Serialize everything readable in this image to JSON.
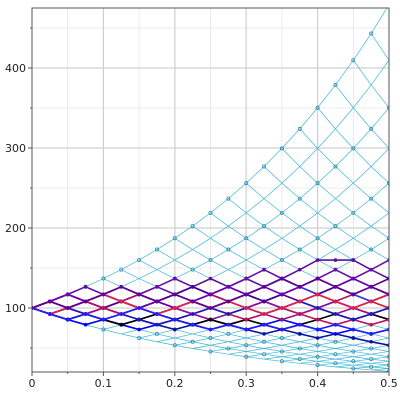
{
  "chart_data": {
    "type": "line",
    "title": "",
    "xlabel": "",
    "ylabel": "",
    "xlim": [
      0,
      0.5
    ],
    "ylim": [
      20,
      475
    ],
    "grid": true,
    "legend": "none",
    "x_ticks": [
      {
        "value": 0,
        "label": "0"
      },
      {
        "value": 0.1,
        "label": "0.1"
      },
      {
        "value": 0.2,
        "label": "0.2"
      },
      {
        "value": 0.3,
        "label": "0.3"
      },
      {
        "value": 0.4,
        "label": "0.4"
      },
      {
        "value": 0.5,
        "label": "0.5"
      }
    ],
    "y_ticks": [
      {
        "value": 100,
        "label": "100"
      },
      {
        "value": 200,
        "label": "200"
      },
      {
        "value": 300,
        "label": "300"
      },
      {
        "value": 400,
        "label": "400"
      }
    ],
    "lattice": {
      "s0": 100,
      "steps": 20,
      "t_max": 0.5,
      "up_factor": 1.0815,
      "color": "#3fb6d6",
      "node_color": "#2e8fb0"
    },
    "paths_x": [
      0,
      0.025,
      0.05,
      0.075,
      0.1,
      0.125,
      0.15,
      0.175,
      0.2,
      0.225,
      0.25,
      0.275,
      0.3,
      0.325,
      0.35,
      0.375,
      0.4,
      0.425,
      0.45,
      0.475,
      0.5
    ],
    "series": [
      {
        "color": "#5a0fa0",
        "values": [
          100,
          108.2,
          117.0,
          126.5,
          117.0,
          126.5,
          117.0,
          126.5,
          117.0,
          126.5,
          136.8,
          126.5,
          136.8,
          126.5,
          136.8,
          147.9,
          159.9,
          159.9,
          159.9,
          147.9,
          136.8
        ]
      },
      {
        "color": "#6a10a8",
        "values": [
          100,
          108.2,
          100,
          108.2,
          117.0,
          108.2,
          117.0,
          126.5,
          136.8,
          126.5,
          117.0,
          126.5,
          136.8,
          147.9,
          136.8,
          126.5,
          136.8,
          147.9,
          136.8,
          147.9,
          159.9
        ]
      },
      {
        "color": "#2d1fd1",
        "values": [
          100,
          108.2,
          117.0,
          108.2,
          117.0,
          126.5,
          117.0,
          108.2,
          117.0,
          126.5,
          117.0,
          108.2,
          117.0,
          126.5,
          136.8,
          126.5,
          117.0,
          126.5,
          136.8,
          126.5,
          117.0
        ]
      },
      {
        "color": "#b01060",
        "values": [
          100,
          92.5,
          100,
          108.2,
          100,
          108.2,
          117.0,
          108.2,
          100,
          108.2,
          117.0,
          108.2,
          100,
          108.2,
          117.0,
          126.5,
          117.0,
          108.2,
          117.0,
          108.2,
          117.0
        ]
      },
      {
        "color": "#d01040",
        "values": [
          100,
          92.5,
          100,
          92.5,
          100,
          108.2,
          100,
          108.2,
          100,
          92.5,
          100,
          108.2,
          117.0,
          108.2,
          100,
          108.2,
          100,
          108.2,
          100,
          108.2,
          100
        ]
      },
      {
        "color": "#1010a0",
        "values": [
          100,
          92.5,
          85.5,
          92.5,
          85.5,
          79.1,
          85.5,
          79.1,
          73.1,
          79.1,
          85.5,
          79.1,
          73.1,
          67.6,
          73.1,
          67.6,
          62.5,
          67.6,
          62.5,
          57.8,
          53.5
        ]
      },
      {
        "color": "#0000ff",
        "values": [
          100,
          92.5,
          85.5,
          79.1,
          85.5,
          79.1,
          73.1,
          79.1,
          85.5,
          79.1,
          73.1,
          79.1,
          73.1,
          79.1,
          85.5,
          79.1,
          73.1,
          67.6,
          73.1,
          67.6,
          73.1
        ]
      },
      {
        "color": "#8010a0",
        "values": [
          100,
          108.2,
          100,
          92.5,
          100,
          92.5,
          85.5,
          92.5,
          100,
          92.5,
          85.5,
          92.5,
          100,
          108.2,
          100,
          92.5,
          100,
          108.2,
          100,
          92.5,
          100
        ]
      },
      {
        "color": "#3040e0",
        "values": [
          100,
          92.5,
          100,
          108.2,
          100,
          92.5,
          100,
          108.2,
          117.0,
          108.2,
          100,
          108.2,
          117.0,
          108.2,
          117.0,
          126.5,
          117.0,
          126.5,
          117.0,
          108.2,
          117.0
        ]
      },
      {
        "color": "#a01080",
        "values": [
          100,
          92.5,
          85.5,
          92.5,
          100,
          92.5,
          100,
          92.5,
          85.5,
          92.5,
          85.5,
          79.1,
          85.5,
          92.5,
          85.5,
          92.5,
          100,
          92.5,
          100,
          92.5,
          85.5
        ]
      },
      {
        "color": "#000000",
        "values": [
          100,
          92.5,
          85.5,
          92.5,
          85.5,
          79.1,
          85.5,
          92.5,
          85.5,
          79.1,
          85.5,
          79.1,
          85.5,
          79.1,
          73.1,
          79.1,
          85.5,
          92.5,
          85.5,
          92.5,
          85.5
        ]
      },
      {
        "color": "#4a0090",
        "values": [
          100,
          108.2,
          117.0,
          108.2,
          100,
          108.2,
          100,
          108.2,
          117.0,
          126.5,
          117.0,
          126.5,
          117.0,
          108.2,
          117.0,
          108.2,
          117.0,
          126.5,
          117.0,
          126.5,
          136.8
        ]
      },
      {
        "color": "#c0105a",
        "values": [
          100,
          108.2,
          100,
          108.2,
          100,
          92.5,
          100,
          92.5,
          100,
          108.2,
          100,
          92.5,
          85.5,
          92.5,
          100,
          92.5,
          85.5,
          79.1,
          85.5,
          79.1,
          85.5
        ]
      },
      {
        "color": "#1a1ac0",
        "values": [
          100,
          92.5,
          100,
          92.5,
          85.5,
          92.5,
          85.5,
          79.1,
          85.5,
          92.5,
          100,
          92.5,
          100,
          92.5,
          100,
          108.2,
          100,
          92.5,
          85.5,
          92.5,
          100
        ]
      },
      {
        "color": "#7000b0",
        "values": [
          100,
          108.2,
          117.0,
          108.2,
          117.0,
          108.2,
          100,
          108.2,
          100,
          108.2,
          117.0,
          126.5,
          117.0,
          126.5,
          117.0,
          126.5,
          136.8,
          126.5,
          136.8,
          126.5,
          117.0
        ]
      },
      {
        "color": "#e0204a",
        "values": [
          100,
          92.5,
          100,
          108.2,
          117.0,
          108.2,
          100,
          92.5,
          100,
          108.2,
          100,
          108.2,
          100,
          92.5,
          100,
          108.2,
          117.0,
          108.2,
          100,
          108.2,
          117.0
        ]
      },
      {
        "color": "#2020ff",
        "values": [
          100,
          92.5,
          85.5,
          92.5,
          85.5,
          92.5,
          100,
          92.5,
          85.5,
          79.1,
          73.1,
          79.1,
          73.1,
          79.1,
          73.1,
          79.1,
          73.1,
          79.1,
          73.1,
          67.6,
          73.1
        ]
      },
      {
        "color": "#600090",
        "values": [
          100,
          108.2,
          100,
          108.2,
          117.0,
          126.5,
          117.0,
          108.2,
          117.0,
          108.2,
          100,
          108.2,
          117.0,
          126.5,
          136.8,
          126.5,
          136.8,
          126.5,
          117.0,
          126.5,
          117.0
        ]
      }
    ]
  }
}
